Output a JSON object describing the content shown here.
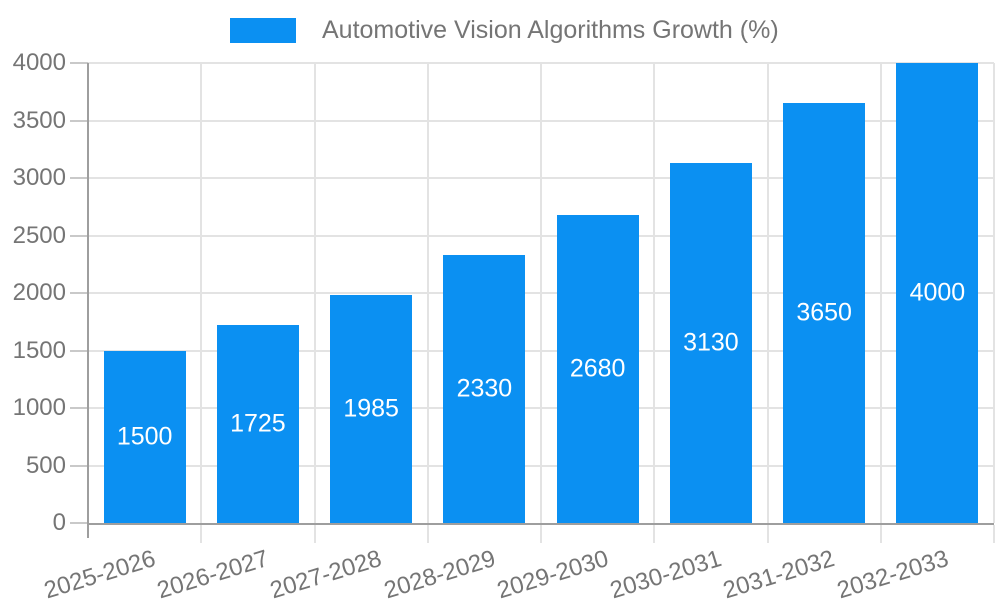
{
  "legend": {
    "label": "Automotive Vision Algorithms Growth (%)"
  },
  "chart_data": {
    "type": "bar",
    "title": "Automotive Vision Algorithms Growth (%)",
    "series_name": "Automotive Vision Algorithms Growth (%)",
    "categories": [
      "2025-2026",
      "2026-2027",
      "2027-2028",
      "2028-2029",
      "2029-2030",
      "2030-2031",
      "2031-2032",
      "2032-2033"
    ],
    "values": [
      1500,
      1725,
      1985,
      2330,
      2680,
      3130,
      3650,
      4000
    ],
    "bar_labels": [
      "1500",
      "1725",
      "1985",
      "2330",
      "2680",
      "3130",
      "3650",
      "4000"
    ],
    "xlabel": "",
    "ylabel": "",
    "ylim": [
      0,
      4000
    ],
    "yticks": [
      0,
      500,
      1000,
      1500,
      2000,
      2500,
      3000,
      3500,
      4000
    ],
    "grid": true,
    "legend_position": "top",
    "x_label_rotation_deg": -17,
    "colors": {
      "bar": "#0b90f2",
      "bar_label": "#ffffff",
      "axis_text": "#757575",
      "legend_text": "#757575",
      "grid_line": "#e3e3e3",
      "tick_line": "#c9c9c9",
      "axis_line": "#9e9e9e",
      "background": "#ffffff"
    }
  }
}
